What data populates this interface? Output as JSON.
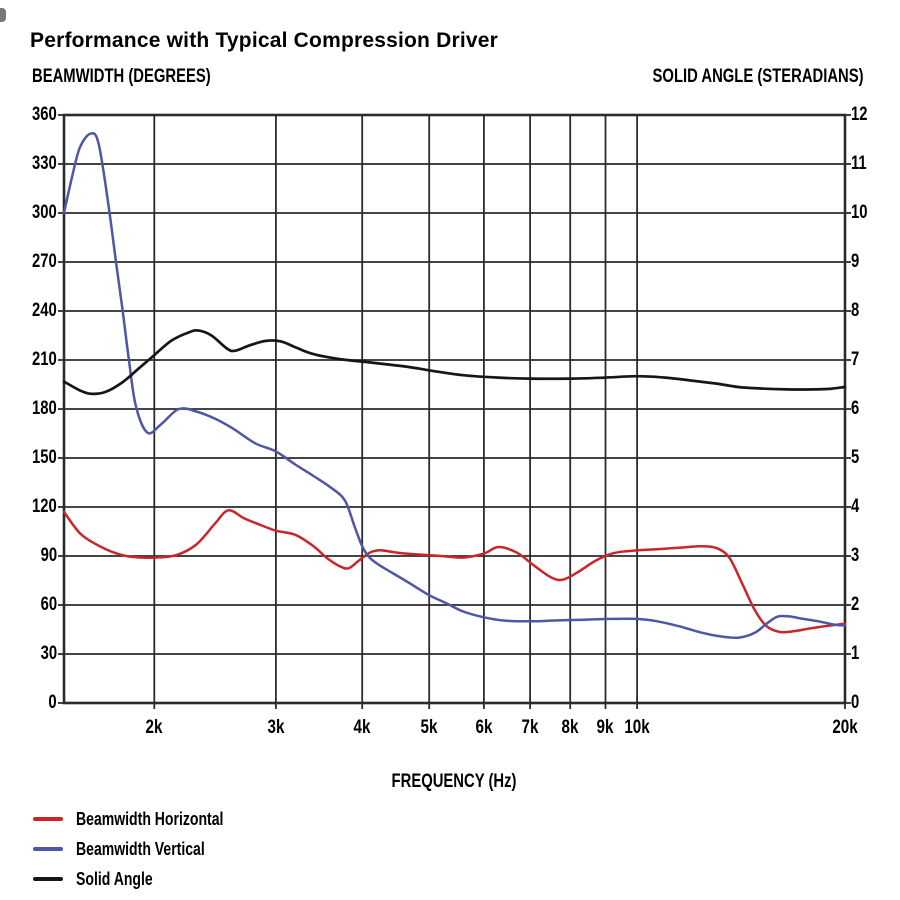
{
  "chart_data": {
    "type": "line",
    "title": "Performance with Typical Compression Driver",
    "grid": true,
    "grid_color": "#2b2b2b",
    "background": "#ffffff",
    "x_axis": {
      "label": "FREQUENCY (Hz)",
      "scale": "log",
      "domain": [
        1480,
        20000
      ],
      "ticks": [
        {
          "f": 2000,
          "label": "2k"
        },
        {
          "f": 3000,
          "label": "3k"
        },
        {
          "f": 4000,
          "label": "4k"
        },
        {
          "f": 5000,
          "label": "5k"
        },
        {
          "f": 6000,
          "label": "6k"
        },
        {
          "f": 7000,
          "label": "7k"
        },
        {
          "f": 8000,
          "label": "8k"
        },
        {
          "f": 9000,
          "label": "9k"
        },
        {
          "f": 10000,
          "label": "10k"
        },
        {
          "f": 20000,
          "label": "20k"
        }
      ]
    },
    "y_left": {
      "label": "BEAMWIDTH (DEGREES)",
      "domain": [
        0,
        360
      ],
      "tick_step": 30,
      "ticks": [
        0,
        30,
        60,
        90,
        120,
        150,
        180,
        210,
        240,
        270,
        300,
        330,
        360
      ]
    },
    "y_right": {
      "label": "SOLID ANGLE (STERADIANS)",
      "domain": [
        0,
        12
      ],
      "tick_step": 1,
      "ticks": [
        0,
        1,
        2,
        3,
        4,
        5,
        6,
        7,
        8,
        9,
        10,
        11,
        12
      ]
    },
    "legend": {
      "position": "bottom-left",
      "items": [
        {
          "label": "Beamwidth Horizontal",
          "color": "#c9262c"
        },
        {
          "label": "Beamwidth Vertical",
          "color": "#4e56a5"
        },
        {
          "label": "Solid Angle",
          "color": "#161616"
        }
      ]
    },
    "series": [
      {
        "name": "Beamwidth Horizontal",
        "axis": "left",
        "unit": "degrees",
        "color": "#c9262c",
        "points": [
          [
            1480,
            117
          ],
          [
            1560,
            104
          ],
          [
            1650,
            97
          ],
          [
            1750,
            92
          ],
          [
            1850,
            89.5
          ],
          [
            2000,
            89
          ],
          [
            2150,
            90.5
          ],
          [
            2300,
            97
          ],
          [
            2450,
            110
          ],
          [
            2560,
            118
          ],
          [
            2700,
            113
          ],
          [
            2850,
            109
          ],
          [
            3000,
            105.5
          ],
          [
            3200,
            103
          ],
          [
            3400,
            96
          ],
          [
            3550,
            89
          ],
          [
            3700,
            84
          ],
          [
            3820,
            82.5
          ],
          [
            3950,
            87
          ],
          [
            4100,
            92
          ],
          [
            4250,
            93.5
          ],
          [
            4500,
            92
          ],
          [
            4800,
            91
          ],
          [
            5200,
            90
          ],
          [
            5600,
            89
          ],
          [
            6000,
            91.5
          ],
          [
            6300,
            95.5
          ],
          [
            6700,
            92
          ],
          [
            7100,
            84
          ],
          [
            7500,
            77
          ],
          [
            7800,
            75.5
          ],
          [
            8200,
            80
          ],
          [
            8700,
            87
          ],
          [
            9200,
            91.5
          ],
          [
            9700,
            93
          ],
          [
            10500,
            94
          ],
          [
            11500,
            95
          ],
          [
            12300,
            96
          ],
          [
            13000,
            95
          ],
          [
            13600,
            89
          ],
          [
            14200,
            73
          ],
          [
            14800,
            57
          ],
          [
            15400,
            47
          ],
          [
            16100,
            43.5
          ],
          [
            16900,
            44
          ],
          [
            17700,
            45.5
          ],
          [
            18700,
            47
          ],
          [
            19500,
            48
          ],
          [
            20000,
            48.5
          ]
        ]
      },
      {
        "name": "Beamwidth Vertical",
        "axis": "left",
        "unit": "degrees",
        "color": "#4e56a5",
        "points": [
          [
            1480,
            300
          ],
          [
            1520,
            322
          ],
          [
            1560,
            340
          ],
          [
            1615,
            348.5
          ],
          [
            1660,
            343
          ],
          [
            1715,
            306
          ],
          [
            1760,
            270
          ],
          [
            1800,
            240
          ],
          [
            1835,
            212
          ],
          [
            1880,
            182
          ],
          [
            1955,
            165.5
          ],
          [
            2050,
            171
          ],
          [
            2170,
            180
          ],
          [
            2300,
            178.5
          ],
          [
            2450,
            174
          ],
          [
            2600,
            168
          ],
          [
            2800,
            159
          ],
          [
            3000,
            154
          ],
          [
            3200,
            146
          ],
          [
            3400,
            139
          ],
          [
            3600,
            132
          ],
          [
            3775,
            124
          ],
          [
            3900,
            108
          ],
          [
            4000,
            96
          ],
          [
            4100,
            89
          ],
          [
            4250,
            84
          ],
          [
            4450,
            79
          ],
          [
            4700,
            73
          ],
          [
            5000,
            66
          ],
          [
            5300,
            61
          ],
          [
            5600,
            56
          ],
          [
            6000,
            52.5
          ],
          [
            6400,
            50.5
          ],
          [
            7000,
            50
          ],
          [
            7600,
            50.5
          ],
          [
            8400,
            51
          ],
          [
            9200,
            51.5
          ],
          [
            10000,
            51.5
          ],
          [
            10700,
            50
          ],
          [
            11500,
            47
          ],
          [
            12300,
            43.5
          ],
          [
            13100,
            41
          ],
          [
            14000,
            40
          ],
          [
            14800,
            43
          ],
          [
            15500,
            49.5
          ],
          [
            16000,
            53
          ],
          [
            16600,
            53
          ],
          [
            17400,
            51.5
          ],
          [
            18300,
            50
          ],
          [
            19300,
            48
          ],
          [
            20000,
            47.5
          ]
        ]
      },
      {
        "name": "Solid Angle",
        "axis": "right",
        "unit": "steradians",
        "color": "#161616",
        "points": [
          [
            1480,
            6.56
          ],
          [
            1560,
            6.38
          ],
          [
            1620,
            6.31
          ],
          [
            1700,
            6.35
          ],
          [
            1800,
            6.55
          ],
          [
            1900,
            6.83
          ],
          [
            2000,
            7.1
          ],
          [
            2120,
            7.4
          ],
          [
            2250,
            7.57
          ],
          [
            2320,
            7.6
          ],
          [
            2420,
            7.5
          ],
          [
            2550,
            7.23
          ],
          [
            2620,
            7.19
          ],
          [
            2750,
            7.3
          ],
          [
            2900,
            7.39
          ],
          [
            3050,
            7.38
          ],
          [
            3200,
            7.26
          ],
          [
            3400,
            7.12
          ],
          [
            3700,
            7.02
          ],
          [
            4100,
            6.95
          ],
          [
            4600,
            6.87
          ],
          [
            5100,
            6.77
          ],
          [
            5600,
            6.69
          ],
          [
            6300,
            6.64
          ],
          [
            7000,
            6.62
          ],
          [
            8000,
            6.62
          ],
          [
            9000,
            6.64
          ],
          [
            10000,
            6.67
          ],
          [
            11000,
            6.64
          ],
          [
            12000,
            6.58
          ],
          [
            13000,
            6.52
          ],
          [
            14000,
            6.45
          ],
          [
            15000,
            6.42
          ],
          [
            16500,
            6.4
          ],
          [
            18000,
            6.4
          ],
          [
            19000,
            6.41
          ],
          [
            20000,
            6.45
          ]
        ]
      }
    ]
  }
}
